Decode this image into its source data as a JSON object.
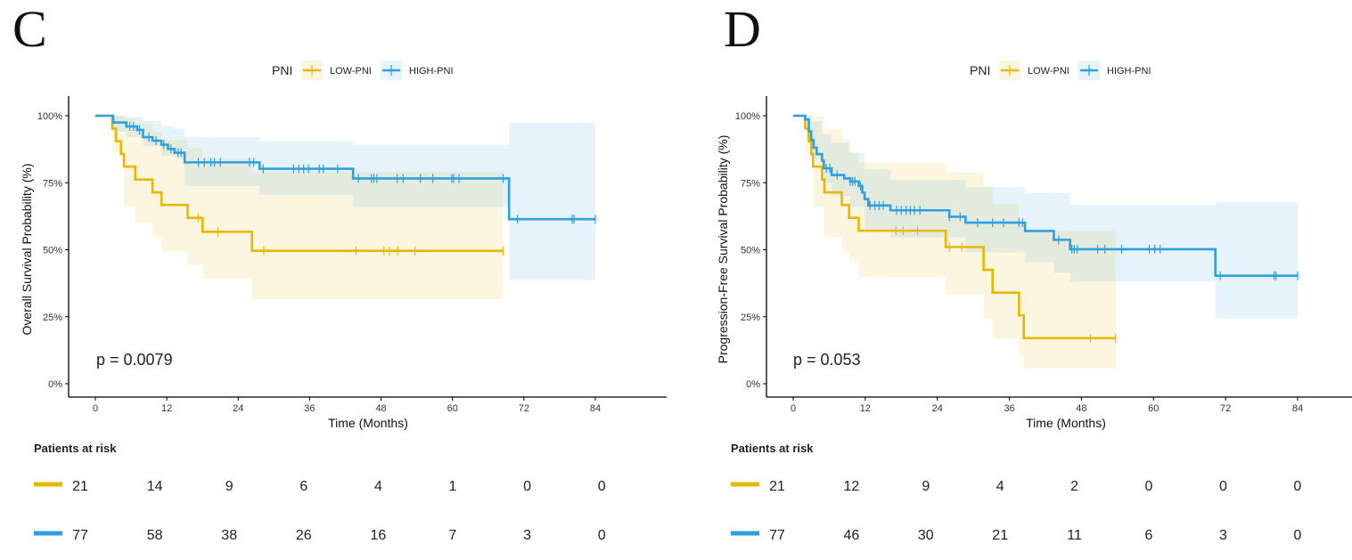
{
  "colors": {
    "low": "#E7B800",
    "high": "#2E9FDF"
  },
  "chart_data": [
    {
      "panel_label": "C",
      "type": "line",
      "subtype": "kaplan-meier step",
      "legend": {
        "title": "PNI",
        "entries": [
          "LOW-PNI",
          "HIGH-PNI"
        ],
        "placement": "top"
      },
      "xlabel": "Time (Months)",
      "ylabel": "Overall Survival Probability (%)",
      "xlim": [
        0,
        84
      ],
      "xticks": [
        "0",
        "12",
        "24",
        "36",
        "48",
        "60",
        "72",
        "84"
      ],
      "ylim": [
        0,
        100
      ],
      "yticks": [
        "0%",
        "25%",
        "50%",
        "75%",
        "100%"
      ],
      "grid": false,
      "pvalue": "p = 0.0079",
      "series": [
        {
          "name": "LOW-PNI",
          "end": 68.5,
          "steps": [
            [
              0,
              100
            ],
            [
              2.85,
              95.2
            ],
            [
              3.45,
              90.5
            ],
            [
              4.3,
              85.7
            ],
            [
              4.8,
              81.0
            ],
            [
              6.7,
              76.2
            ],
            [
              9.6,
              71.4
            ],
            [
              11.1,
              66.7
            ],
            [
              15.5,
              61.9
            ],
            [
              18.0,
              56.7
            ],
            [
              26.3,
              49.6
            ]
          ],
          "censored": [
            17.3,
            20.6,
            28.3,
            43.8,
            48.5,
            49.4,
            50.8,
            53.7,
            68.5
          ],
          "ci": [
            [
              0,
              100,
              100
            ],
            [
              2.85,
              86.5,
              100
            ],
            [
              4.8,
              66,
              99
            ],
            [
              6.7,
              60,
              97
            ],
            [
              9.6,
              54.6,
              94
            ],
            [
              11.1,
              49.3,
              91
            ],
            [
              15.5,
              44.4,
              88
            ],
            [
              18.0,
              39.2,
              84
            ],
            [
              26.3,
              31.5,
              79
            ]
          ]
        },
        {
          "name": "HIGH-PNI",
          "end": 84,
          "steps": [
            [
              0,
              100
            ],
            [
              3.0,
              97.5
            ],
            [
              5.2,
              96.0
            ],
            [
              7.0,
              94.7
            ],
            [
              8.0,
              92.0
            ],
            [
              9.6,
              90.7
            ],
            [
              11.1,
              89.2
            ],
            [
              12.2,
              87.6
            ],
            [
              13.3,
              86.2
            ],
            [
              15.0,
              82.6
            ],
            [
              27.6,
              80.2
            ],
            [
              43.3,
              76.6
            ],
            [
              69.5,
              61.4
            ]
          ],
          "censored": [
            5.8,
            6.4,
            7.4,
            9.0,
            10.2,
            11.5,
            12.7,
            13.9,
            14.4,
            17.3,
            18.3,
            19.4,
            20.0,
            21.0,
            25.9,
            26.6,
            28.2,
            33.3,
            34.2,
            35.0,
            35.8,
            37.6,
            38.3,
            40.7,
            44.2,
            46.4,
            46.8,
            47.3,
            50.7,
            51.7,
            54.6,
            56.7,
            59.9,
            60.2,
            61.1,
            68.5,
            70.9,
            80.1,
            80.4,
            84.0
          ],
          "ci": [
            [
              0,
              100,
              100
            ],
            [
              3.0,
              94,
              100
            ],
            [
              5.2,
              92,
              99.5
            ],
            [
              8.0,
              88.7,
              98
            ],
            [
              11.1,
              85,
              96
            ],
            [
              13.3,
              84.3,
              95
            ],
            [
              15.0,
              73.8,
              92
            ],
            [
              27.6,
              70.5,
              90.5
            ],
            [
              43.3,
              65.8,
              89
            ],
            [
              69.5,
              38.8,
              97.3
            ]
          ]
        }
      ],
      "risk_table": {
        "title": "Patients at risk",
        "rows": [
          {
            "group": "LOW-PNI",
            "values": [
              "21",
              "14",
              "9",
              "6",
              "4",
              "1",
              "0",
              "0"
            ]
          },
          {
            "group": "HIGH-PNI",
            "values": [
              "77",
              "58",
              "38",
              "26",
              "16",
              "7",
              "3",
              "0"
            ]
          }
        ]
      }
    },
    {
      "panel_label": "D",
      "type": "line",
      "subtype": "kaplan-meier step",
      "legend": {
        "title": "PNI",
        "entries": [
          "LOW-PNI",
          "HIGH-PNI"
        ],
        "placement": "top"
      },
      "xlabel": "Time (Months)",
      "ylabel": "Progression-Free Survival Probability (%)",
      "xlim": [
        0,
        84
      ],
      "xticks": [
        "0",
        "12",
        "24",
        "36",
        "48",
        "60",
        "72",
        "84"
      ],
      "ylim": [
        0,
        100
      ],
      "yticks": [
        "0%",
        "25%",
        "50%",
        "75%",
        "100%"
      ],
      "grid": false,
      "pvalue": "p = 0.053",
      "series": [
        {
          "name": "LOW-PNI",
          "end": 53.7,
          "steps": [
            [
              0,
              100
            ],
            [
              2.0,
              95.2
            ],
            [
              2.6,
              90.5
            ],
            [
              3.0,
              85.7
            ],
            [
              3.3,
              81.0
            ],
            [
              4.8,
              76.2
            ],
            [
              5.2,
              71.4
            ],
            [
              8.1,
              66.7
            ],
            [
              9.3,
              61.9
            ],
            [
              10.9,
              57.1
            ],
            [
              25.4,
              51.0
            ],
            [
              31.7,
              42.5
            ],
            [
              33.2,
              34.0
            ],
            [
              37.6,
              25.5
            ],
            [
              38.4,
              17.0
            ]
          ],
          "censored": [
            17.1,
            18.3,
            20.7,
            26.0,
            28.1,
            49.5,
            53.7
          ],
          "ci": [
            [
              0,
              100,
              100
            ],
            [
              2.0,
              86.5,
              100
            ],
            [
              3.3,
              65.8,
              99.7
            ],
            [
              5.1,
              54.8,
              95
            ],
            [
              8.1,
              49.3,
              91.4
            ],
            [
              9.3,
              45.3,
              86.5
            ],
            [
              10.9,
              39.8,
              82.6
            ],
            [
              25.4,
              33.2,
              78.8
            ],
            [
              31.7,
              24.4,
              73.8
            ],
            [
              33.2,
              16.7,
              67
            ],
            [
              37.6,
              10.7,
              60
            ],
            [
              38.4,
              5.7,
              57
            ]
          ]
        },
        {
          "name": "HIGH-PNI",
          "end": 84,
          "steps": [
            [
              0,
              100
            ],
            [
              2.0,
              98.6
            ],
            [
              2.6,
              94.2
            ],
            [
              3.0,
              90.9
            ],
            [
              3.4,
              88.1
            ],
            [
              3.9,
              85.7
            ],
            [
              4.8,
              83.2
            ],
            [
              5.1,
              80.4
            ],
            [
              6.4,
              77.9
            ],
            [
              8.5,
              76.6
            ],
            [
              9.5,
              75.5
            ],
            [
              10.9,
              73.8
            ],
            [
              11.5,
              71.3
            ],
            [
              11.9,
              68.9
            ],
            [
              12.5,
              66.5
            ],
            [
              16.2,
              64.7
            ],
            [
              26.0,
              62.3
            ],
            [
              28.7,
              60.1
            ],
            [
              38.6,
              57.0
            ],
            [
              43.4,
              53.7
            ],
            [
              46.1,
              50.2
            ],
            [
              70.3,
              40.3
            ]
          ],
          "censored": [
            5.5,
            6.1,
            7.3,
            9.5,
            9.9,
            10.3,
            11.2,
            12.8,
            13.6,
            14.3,
            15.0,
            17.2,
            18.0,
            18.8,
            19.5,
            20.2,
            21.1,
            26.0,
            27.8,
            30.7,
            33.2,
            35.0,
            37.6,
            38.2,
            44.2,
            46.4,
            46.8,
            47.3,
            50.7,
            51.9,
            54.7,
            59.3,
            60.2,
            61.1,
            71.1,
            80.1,
            80.4,
            84.0
          ],
          "ci": [
            [
              0,
              100,
              100
            ],
            [
              2.0,
              95,
              100
            ],
            [
              3.0,
              84,
              98
            ],
            [
              4.8,
              75,
              93
            ],
            [
              6.4,
              70,
              90
            ],
            [
              9.5,
              66,
              86
            ],
            [
              11.9,
              57.4,
              80
            ],
            [
              16.2,
              54.6,
              76
            ],
            [
              28.7,
              49.1,
              73.3
            ],
            [
              38.6,
              45.3,
              71.1
            ],
            [
              43.4,
              41.4,
              71.1
            ],
            [
              46.1,
              38.1,
              66.7
            ],
            [
              70.3,
              24.4,
              67.8
            ]
          ]
        }
      ],
      "risk_table": {
        "title": "Patients at risk",
        "rows": [
          {
            "group": "LOW-PNI",
            "values": [
              "21",
              "12",
              "9",
              "4",
              "2",
              "0",
              "0",
              "0"
            ]
          },
          {
            "group": "HIGH-PNI",
            "values": [
              "77",
              "46",
              "30",
              "21",
              "11",
              "6",
              "3",
              "0"
            ]
          }
        ]
      }
    }
  ]
}
